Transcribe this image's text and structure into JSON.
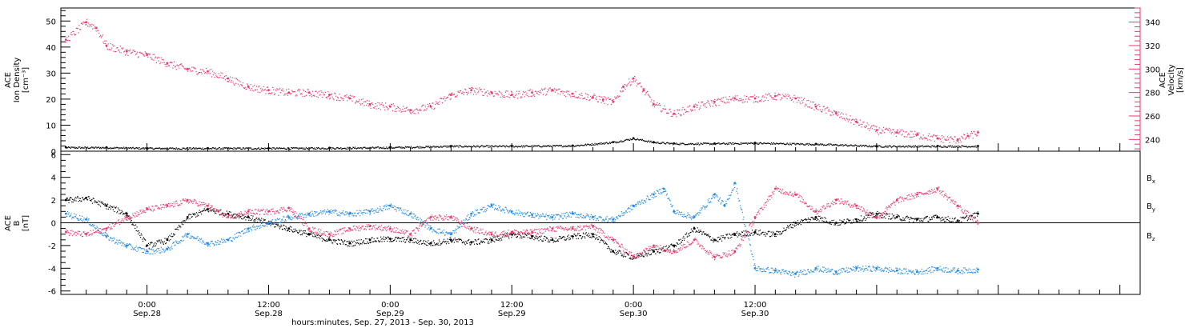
{
  "chart_data": [
    {
      "type": "scatter",
      "panel": "top",
      "ylabel_left": [
        "ACE",
        "Ion Density",
        "[cm⁻³]"
      ],
      "ylabel_right": [
        "ACE",
        "Velocity",
        "[km/s]"
      ],
      "ylim_left": [
        0,
        55
      ],
      "yticks_left": [
        "0",
        "10",
        "20",
        "30",
        "40",
        "50"
      ],
      "ylim_right": [
        230,
        352
      ],
      "yticks_right": [
        "240",
        "260",
        "280",
        "300",
        "320",
        "340"
      ],
      "colors": {
        "density": "#000000",
        "velocity": "#e8386a"
      },
      "series": [
        {
          "axis": "left",
          "color": "#000000",
          "x": [
            -8,
            -4,
            0,
            6,
            12,
            18,
            24,
            30,
            36,
            42,
            46,
            48,
            50,
            52,
            56,
            60,
            66,
            72,
            78,
            82
          ],
          "y": [
            1.5,
            1.5,
            1.2,
            1.2,
            1.2,
            1.3,
            1.5,
            2.0,
            2.0,
            2.2,
            3.5,
            5.0,
            3.5,
            3.0,
            3.0,
            3.2,
            2.8,
            2.0,
            2.0,
            2.0
          ]
        },
        {
          "axis": "right",
          "color": "#e8386a",
          "x": [
            -8,
            -6,
            -5,
            -4,
            -2,
            0,
            2,
            4,
            6,
            8,
            10,
            12,
            14,
            16,
            18,
            20,
            22,
            24,
            26,
            28,
            30,
            32,
            34,
            36,
            38,
            40,
            42,
            44,
            45,
            46,
            47,
            48,
            49,
            50,
            52,
            54,
            56,
            58,
            60,
            62,
            64,
            66,
            68,
            70,
            72,
            74,
            76,
            78,
            80,
            81,
            82
          ],
          "y": [
            325,
            340,
            335,
            320,
            315,
            312,
            305,
            300,
            298,
            292,
            285,
            282,
            280,
            280,
            278,
            275,
            270,
            268,
            265,
            268,
            278,
            282,
            280,
            278,
            280,
            282,
            279,
            276,
            274,
            272,
            285,
            292,
            282,
            270,
            262,
            268,
            272,
            275,
            275,
            277,
            275,
            268,
            262,
            255,
            248,
            246,
            244,
            241,
            240,
            243,
            246
          ]
        }
      ]
    },
    {
      "type": "scatter",
      "panel": "bottom",
      "ylabel": [
        "ACE",
        "B",
        "[nT]"
      ],
      "ylim": [
        -6.3,
        6.3
      ],
      "yticks": [
        "-6",
        "-4",
        "-2",
        "0",
        "2",
        "4",
        "6"
      ],
      "xlim": [
        -8.5,
        98
      ],
      "x_unit": "hours from 00:00 Sep 28, 2013",
      "xticks": [
        {
          "time": "0:00",
          "date": "Sep.28"
        },
        {
          "time": "12:00",
          "date": "Sep.28"
        },
        {
          "time": "0:00",
          "date": "Sep.29"
        },
        {
          "time": "12:00",
          "date": "Sep.29"
        },
        {
          "time": "0:00",
          "date": "Sep.30"
        },
        {
          "time": "12:00",
          "date": "Sep.30"
        }
      ],
      "xlabel": "hours:minutes, Sep. 27, 2013 - Sep. 30, 2013",
      "legend": [
        {
          "label": "B",
          "sub": "x",
          "color": "#000000"
        },
        {
          "label": "B",
          "sub": "y",
          "color": "#1e88e5"
        },
        {
          "label": "B",
          "sub": "z",
          "color": "#e8386a"
        }
      ],
      "series": [
        {
          "name": "Bx",
          "color": "#000000",
          "x": [
            -8,
            -6,
            -4,
            -2,
            0,
            2,
            4,
            6,
            8,
            10,
            12,
            14,
            16,
            18,
            20,
            22,
            24,
            26,
            28,
            30,
            32,
            34,
            36,
            38,
            40,
            42,
            44,
            46,
            48,
            50,
            52,
            54,
            56,
            58,
            60,
            62,
            64,
            66,
            68,
            70,
            72,
            74,
            76,
            78,
            80,
            82
          ],
          "y": [
            2.0,
            2.2,
            1.5,
            0.8,
            -2.0,
            -1.5,
            0.5,
            1.2,
            0.8,
            0.5,
            0.0,
            -0.5,
            -1.0,
            -1.5,
            -1.8,
            -1.5,
            -1.4,
            -1.5,
            -1.8,
            -1.5,
            -1.7,
            -1.5,
            -1.0,
            -1.2,
            -1.5,
            -1.2,
            -1.0,
            -2.5,
            -3.0,
            -2.5,
            -2.0,
            -0.5,
            -1.5,
            -1.0,
            -0.8,
            -1.0,
            0.0,
            0.5,
            0.0,
            0.3,
            0.8,
            0.5,
            0.3,
            0.5,
            0.2,
            0.8
          ]
        },
        {
          "name": "By",
          "color": "#1e88e5",
          "x": [
            -8,
            -6,
            -4,
            -2,
            0,
            2,
            4,
            6,
            8,
            10,
            12,
            14,
            16,
            18,
            20,
            22,
            24,
            26,
            28,
            30,
            32,
            34,
            36,
            38,
            40,
            42,
            44,
            46,
            48,
            50,
            51,
            52,
            54,
            56,
            57,
            58,
            60,
            62,
            64,
            66,
            68,
            70,
            72,
            74,
            76,
            78,
            80,
            82
          ],
          "y": [
            0.8,
            0.3,
            -1.2,
            -2.0,
            -2.5,
            -2.3,
            -1.0,
            -1.8,
            -1.5,
            -0.5,
            0.0,
            0.5,
            0.8,
            1.0,
            0.8,
            1.0,
            1.5,
            0.8,
            -0.5,
            -1.0,
            0.8,
            1.5,
            1.0,
            0.7,
            0.5,
            0.8,
            0.5,
            0.3,
            1.5,
            2.5,
            3.0,
            1.0,
            0.5,
            2.5,
            1.5,
            3.5,
            -4.0,
            -4.2,
            -4.5,
            -4.0,
            -4.3,
            -4.0,
            -4.0,
            -4.2,
            -4.3,
            -4.0,
            -4.2,
            -4.1
          ]
        },
        {
          "name": "Bz",
          "color": "#e8386a",
          "x": [
            -8,
            -6,
            -4,
            -2,
            0,
            2,
            4,
            6,
            8,
            10,
            12,
            14,
            16,
            18,
            20,
            22,
            24,
            26,
            28,
            30,
            32,
            34,
            36,
            38,
            40,
            42,
            44,
            46,
            48,
            50,
            52,
            54,
            56,
            58,
            60,
            62,
            64,
            66,
            68,
            70,
            72,
            74,
            76,
            78,
            80,
            82
          ],
          "y": [
            -0.8,
            -1.0,
            -0.5,
            0.5,
            1.2,
            1.5,
            2.0,
            1.5,
            0.5,
            1.0,
            1.0,
            1.3,
            -0.5,
            -1.0,
            -0.5,
            -0.3,
            -0.5,
            -1.0,
            0.5,
            0.5,
            -0.5,
            -1.0,
            -0.8,
            -0.8,
            -0.5,
            -0.5,
            -0.3,
            -1.5,
            -3.0,
            -2.0,
            -2.5,
            -1.5,
            -3.0,
            -2.5,
            0.5,
            3.0,
            2.5,
            1.0,
            2.0,
            1.5,
            0.5,
            2.0,
            2.5,
            3.0,
            1.5,
            0.0
          ]
        }
      ]
    }
  ]
}
